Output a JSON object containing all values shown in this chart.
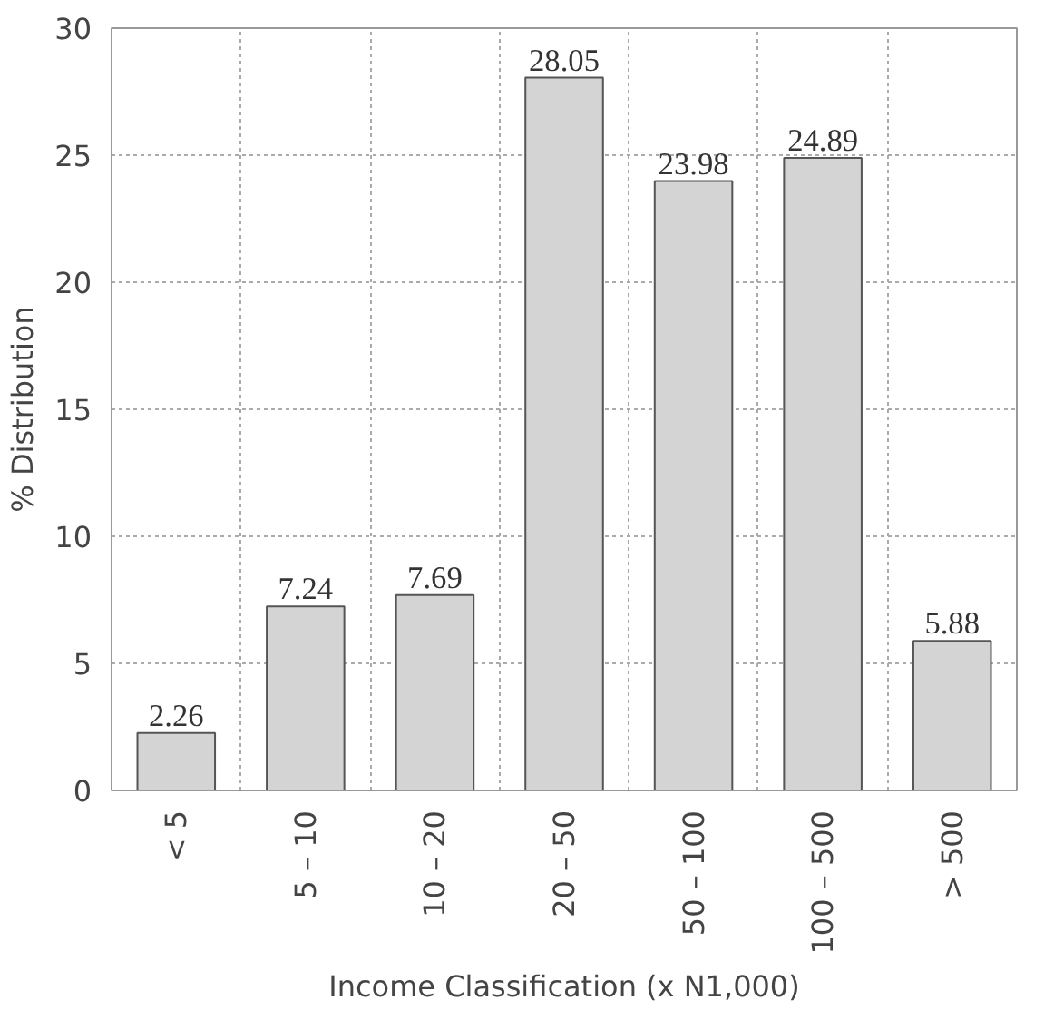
{
  "chart_data": {
    "type": "bar",
    "categories": [
      "< 5",
      "5 – 10",
      "10 – 20",
      "20 – 50",
      "50 – 100",
      "100 – 500",
      "> 500"
    ],
    "values": [
      2.26,
      7.24,
      7.69,
      28.05,
      23.98,
      24.89,
      5.88
    ],
    "color": "#d4d4d4",
    "xlabel": "Income Classification (x N1,000)",
    "ylabel": "% Distribution",
    "ylim": [
      0,
      30
    ],
    "yticks": [
      0,
      5,
      10,
      15,
      20,
      25,
      30
    ],
    "grid": true,
    "data_labels": true
  }
}
